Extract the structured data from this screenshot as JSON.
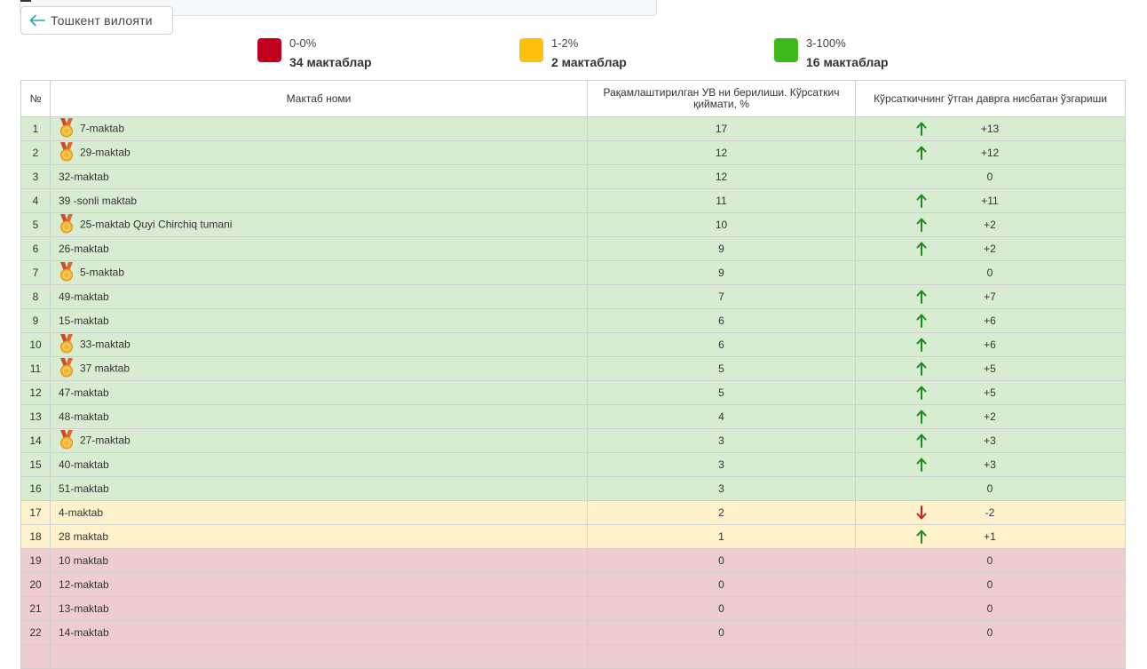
{
  "back_button": {
    "label": "Тошкент вилояти"
  },
  "legend": [
    {
      "range": "0-0%",
      "count": "34 мактаблар",
      "color": "#c0001c"
    },
    {
      "range": "1-2%",
      "count": "2 мактаблар",
      "color": "#fdc00d"
    },
    {
      "range": "3-100%",
      "count": "16 мактаблар",
      "color": "#3cb81b"
    }
  ],
  "table": {
    "headers": {
      "num": "№",
      "name": "Мактаб номи",
      "value": "Рақамлаштирилган УВ ни берилиши. Кўрсаткич қиймати, %",
      "change": "Кўрсаткичнинг ўтган даврга нисбатан ўзгариши"
    },
    "row_colors": {
      "green": "#d7ecd1",
      "yellow": "#fdf2cc",
      "red": "#eecdd1"
    },
    "rows": [
      {
        "num": "1",
        "name": "7-maktab",
        "medal": true,
        "value": "17",
        "change": "+13",
        "trend": "up",
        "status": "green"
      },
      {
        "num": "2",
        "name": "29-maktab",
        "medal": true,
        "value": "12",
        "change": "+12",
        "trend": "up",
        "status": "green"
      },
      {
        "num": "3",
        "name": "32-maktab",
        "medal": false,
        "value": "12",
        "change": "0",
        "trend": "none",
        "status": "green"
      },
      {
        "num": "4",
        "name": "39 -sonli maktab",
        "medal": false,
        "value": "11",
        "change": "+11",
        "trend": "up",
        "status": "green"
      },
      {
        "num": "5",
        "name": "25-maktab Quyi Chirchiq tumani",
        "medal": true,
        "value": "10",
        "change": "+2",
        "trend": "up",
        "status": "green"
      },
      {
        "num": "6",
        "name": "26-maktab",
        "medal": false,
        "value": "9",
        "change": "+2",
        "trend": "up",
        "status": "green"
      },
      {
        "num": "7",
        "name": "5-maktab",
        "medal": true,
        "value": "9",
        "change": "0",
        "trend": "none",
        "status": "green"
      },
      {
        "num": "8",
        "name": "49-maktab",
        "medal": false,
        "value": "7",
        "change": "+7",
        "trend": "up",
        "status": "green"
      },
      {
        "num": "9",
        "name": "15-maktab",
        "medal": false,
        "value": "6",
        "change": "+6",
        "trend": "up",
        "status": "green"
      },
      {
        "num": "10",
        "name": "33-maktab",
        "medal": true,
        "value": "6",
        "change": "+6",
        "trend": "up",
        "status": "green"
      },
      {
        "num": "11",
        "name": "37 maktab",
        "medal": true,
        "value": "5",
        "change": "+5",
        "trend": "up",
        "status": "green"
      },
      {
        "num": "12",
        "name": "47-maktab",
        "medal": false,
        "value": "5",
        "change": "+5",
        "trend": "up",
        "status": "green"
      },
      {
        "num": "13",
        "name": "48-maktab",
        "medal": false,
        "value": "4",
        "change": "+2",
        "trend": "up",
        "status": "green"
      },
      {
        "num": "14",
        "name": "27-maktab",
        "medal": true,
        "value": "3",
        "change": "+3",
        "trend": "up",
        "status": "green"
      },
      {
        "num": "15",
        "name": "40-maktab",
        "medal": false,
        "value": "3",
        "change": "+3",
        "trend": "up",
        "status": "green"
      },
      {
        "num": "16",
        "name": "51-maktab",
        "medal": false,
        "value": "3",
        "change": "0",
        "trend": "none",
        "status": "green"
      },
      {
        "num": "17",
        "name": "4-maktab",
        "medal": false,
        "value": "2",
        "change": "-2",
        "trend": "down",
        "status": "yellow"
      },
      {
        "num": "18",
        "name": "28 maktab",
        "medal": false,
        "value": "1",
        "change": "+1",
        "trend": "up",
        "status": "yellow"
      },
      {
        "num": "19",
        "name": "10 maktab",
        "medal": false,
        "value": "0",
        "change": "0",
        "trend": "none",
        "status": "red"
      },
      {
        "num": "20",
        "name": "12-maktab",
        "medal": false,
        "value": "0",
        "change": "0",
        "trend": "none",
        "status": "red"
      },
      {
        "num": "21",
        "name": "13-maktab",
        "medal": false,
        "value": "0",
        "change": "0",
        "trend": "none",
        "status": "red"
      },
      {
        "num": "22",
        "name": "14-maktab",
        "medal": false,
        "value": "0",
        "change": "0",
        "trend": "none",
        "status": "red"
      },
      {
        "num": "",
        "name": "",
        "medal": false,
        "value": "",
        "change": "",
        "trend": "none",
        "status": "red"
      }
    ]
  }
}
